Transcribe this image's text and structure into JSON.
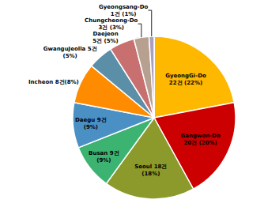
{
  "chart_data": {
    "type": "pie",
    "values": [
      22,
      20,
      18,
      9,
      9,
      8,
      5,
      5,
      3,
      1
    ],
    "value_labels": [
      "GyeongGi-Do\n22건 (22%)",
      "Gangwon-Do\n20건 (20%)",
      "Seoul 18건\n(18%)",
      "Busan 9건\n(9%)",
      "Daegu 9건\n(9%)",
      "Incheon 8건(8%)",
      "GwanguJeolla 5건\n(5%)",
      "Daejeon\n5건 (5%)",
      "Chungcheong-Do\n3건 (3%)",
      "Gyeongsang-Do\n1건 (1%)"
    ],
    "colors": [
      "#FFB800",
      "#CC0000",
      "#8B9A2A",
      "#3CB371",
      "#4A90C4",
      "#FF8C00",
      "#5B8FA8",
      "#C87070",
      "#B8A090",
      "#A8A0C0"
    ],
    "data_labels": true
  }
}
